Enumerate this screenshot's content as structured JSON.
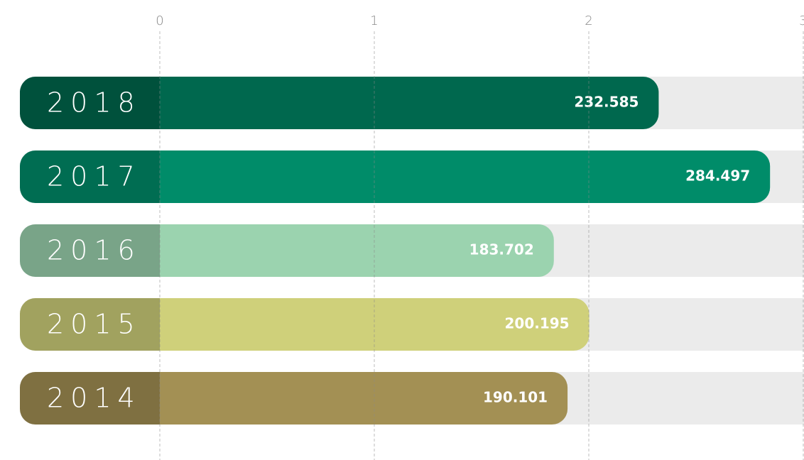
{
  "chart_data": {
    "type": "bar",
    "orientation": "horizontal",
    "categories": [
      "2018",
      "2017",
      "2016",
      "2015",
      "2014"
    ],
    "values": [
      2.32585,
      2.84497,
      1.83702,
      2.00195,
      1.90101
    ],
    "value_labels": [
      "232.585",
      "284.497",
      "183.702",
      "200.195",
      "190.101"
    ],
    "colors": [
      "#00684e",
      "#008c69",
      "#9bd3af",
      "#cfd07a",
      "#a39054"
    ],
    "xlim": [
      0,
      3
    ],
    "xticks": [
      0,
      1,
      2,
      3
    ],
    "grid": true
  }
}
